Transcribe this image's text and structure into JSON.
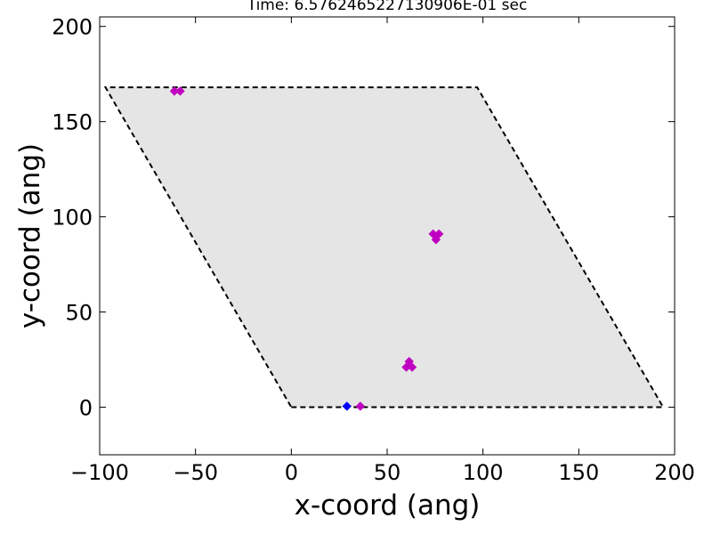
{
  "chart_data": {
    "type": "scatter",
    "title": "Time: 6.5762465227130906E-01 sec",
    "xlabel": "x-coord (ang)",
    "ylabel": "y-coord (ang)",
    "xlim": [
      -100,
      200
    ],
    "ylim": [
      -25,
      205
    ],
    "xticks": [
      -100,
      -50,
      0,
      50,
      100,
      150,
      200
    ],
    "yticks": [
      0,
      50,
      100,
      150,
      200
    ],
    "xtick_labels": [
      "−100",
      "−50",
      "0",
      "50",
      "100",
      "150",
      "200"
    ],
    "ytick_labels": [
      "0",
      "50",
      "100",
      "150",
      "200"
    ],
    "grid": false,
    "cell_boundary": {
      "vertices": [
        [
          0,
          0
        ],
        [
          194,
          0
        ],
        [
          97,
          168
        ],
        [
          -97,
          168
        ]
      ],
      "fill_color": "#e5e5e5",
      "edge_color": "#000000",
      "style": "dashed"
    },
    "series": [
      {
        "color": "#c000c0",
        "points": [
          [
            -61,
            166
          ],
          [
            -58,
            166
          ],
          [
            74,
            91
          ],
          [
            77,
            91
          ],
          [
            75.5,
            88
          ],
          [
            60,
            21
          ],
          [
            63,
            21
          ],
          [
            61.5,
            24
          ],
          [
            36,
            0.5
          ]
        ]
      },
      {
        "color": "#0000ff",
        "points": [
          [
            29,
            0.5
          ]
        ]
      }
    ]
  }
}
